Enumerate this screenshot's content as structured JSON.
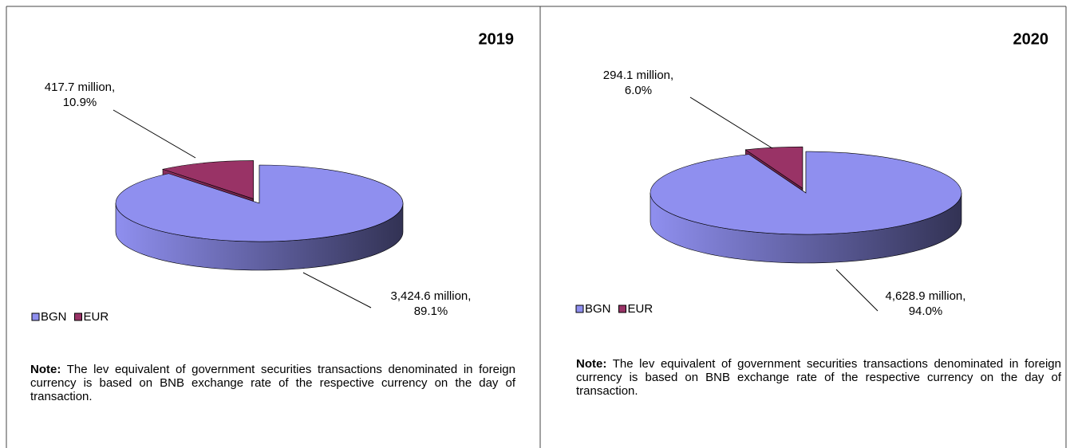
{
  "chart_data": [
    {
      "type": "pie",
      "title": "2019",
      "categories": [
        "BGN",
        "EUR"
      ],
      "values": [
        3424.6,
        417.7
      ],
      "value_labels": [
        [
          "3,424.6 million,",
          "89.1%"
        ],
        [
          "417.7 million,",
          "10.9%"
        ]
      ],
      "colors": [
        "#8f8fef",
        "#993366"
      ],
      "explode": [
        false,
        true
      ],
      "legend": "bottom-left",
      "note_label": "Note:",
      "note": "The lev equivalent of government securities transactions denominated in foreign currency is based on BNB exchange rate of the respective currency on the day of transaction."
    },
    {
      "type": "pie",
      "title": "2020",
      "categories": [
        "BGN",
        "EUR"
      ],
      "values": [
        4628.9,
        294.1
      ],
      "value_labels": [
        [
          "4,628.9 million,",
          "94.0%"
        ],
        [
          "294.1 million,",
          "6.0%"
        ]
      ],
      "colors": [
        "#8f8fef",
        "#993366"
      ],
      "explode": [
        false,
        true
      ],
      "legend": "bottom-left",
      "note_label": "Note:",
      "note": "The lev equivalent of government securities transactions denominated in foreign currency is based on BNB exchange rate of the respective currency on the day of transaction."
    }
  ]
}
